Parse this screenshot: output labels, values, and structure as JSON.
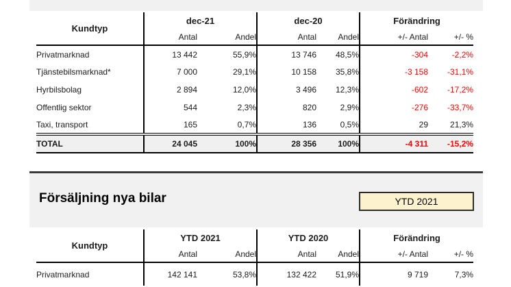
{
  "colors": {
    "negative_red": "#ff0000",
    "band_bg": "#f1f1f1",
    "total_row_bg": "#f0f0f0",
    "badge_bg": "#fcf2cd",
    "badge_border": "#2b2b2b",
    "table_border": "#000000"
  },
  "table1": {
    "kundtyp_header": "Kundtyp",
    "group_headers": [
      "dec-21",
      "dec-20",
      "Förändring"
    ],
    "sub_headers": [
      "Antal",
      "Andel",
      "Antal",
      "Andel",
      "+/- Antal",
      "+/- %"
    ],
    "rows": [
      {
        "label": "Privatmarknad",
        "values": [
          "13 442",
          "55,9%",
          "13 746",
          "48,5%",
          "-304",
          "-2,2%"
        ]
      },
      {
        "label": "Tjänstebilsmarknad*",
        "values": [
          "7 000",
          "29,1%",
          "10 158",
          "35,8%",
          "-3 158",
          "-31,1%"
        ]
      },
      {
        "label": "Hyrbilsbolag",
        "values": [
          "2 894",
          "12,0%",
          "3 496",
          "12,3%",
          "-602",
          "-17,2%"
        ]
      },
      {
        "label": "Offentlig sektor",
        "values": [
          "544",
          "2,3%",
          "820",
          "2,9%",
          "-276",
          "-33,7%"
        ]
      },
      {
        "label": "Taxi, transport",
        "values": [
          "165",
          "0,7%",
          "136",
          "0,5%",
          "29",
          "21,3%"
        ]
      }
    ],
    "total_row": {
      "label": "TOTAL",
      "values": [
        "24 045",
        "100%",
        "28 356",
        "100%",
        "-4 311",
        "-15,2%"
      ]
    }
  },
  "section": {
    "title": "Försäljning nya bilar",
    "badge_label": "YTD 2021"
  },
  "table2": {
    "kundtyp_header": "Kundtyp",
    "group_headers": [
      "YTD 2021",
      "YTD 2020",
      "Förändring"
    ],
    "sub_headers": [
      "Antal",
      "Andel",
      "Antal",
      "Andel",
      "+/- Antal",
      "+/- %"
    ],
    "rows": [
      {
        "label": "Privatmarknad",
        "values": [
          "142 141",
          "53,8%",
          "132 422",
          "51,9%",
          "9 719",
          "7,3%"
        ]
      }
    ]
  }
}
